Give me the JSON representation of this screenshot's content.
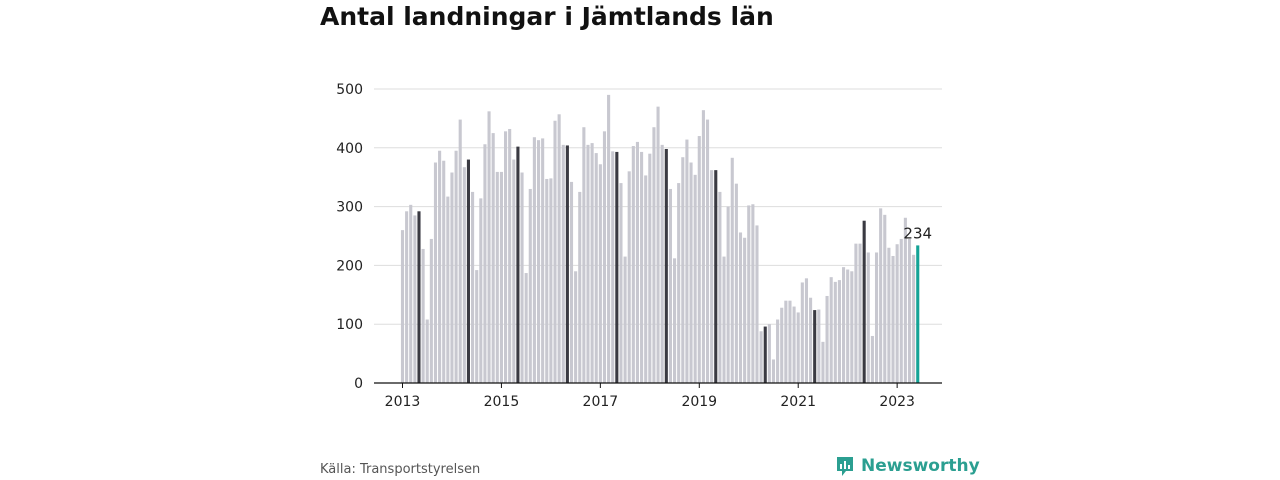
{
  "title": "Antal landningar i Jämtlands län",
  "source": "Källa: Transportstyrelsen",
  "brand": {
    "name": "Newsworthy",
    "icon": "newsworthy-logo-icon",
    "color": "#2b9f91"
  },
  "chart_data": {
    "type": "bar",
    "title": "Antal landningar i Jämtlands län",
    "xlabel": "",
    "ylabel": "",
    "ylim": [
      0,
      500
    ],
    "yticks": [
      0,
      100,
      200,
      300,
      400,
      500
    ],
    "xticks": [
      "2013",
      "2015",
      "2017",
      "2019",
      "2021",
      "2023"
    ],
    "grid": true,
    "colors": {
      "default": "#c8c8d0",
      "highlight": "#3a3a42",
      "latest": "#14a396"
    },
    "annotation": {
      "label": "234"
    },
    "series": [
      {
        "values": [
          260,
          292,
          303,
          285,
          292,
          228,
          108,
          245,
          375,
          395,
          378,
          317,
          358,
          395,
          448,
          367,
          380,
          325,
          192,
          314,
          406,
          462,
          425,
          359,
          359,
          428,
          432,
          380,
          402,
          358,
          187,
          330,
          418,
          413,
          416,
          347,
          348,
          446,
          457,
          405,
          404,
          342,
          190,
          325,
          435,
          405,
          408,
          391,
          372,
          428,
          490,
          394,
          393,
          340,
          215,
          360,
          403,
          410,
          393,
          353,
          390,
          435,
          470,
          405,
          398,
          330,
          212,
          340,
          384,
          414,
          375,
          354,
          420,
          464,
          448,
          362,
          362,
          325,
          215,
          300,
          383,
          339,
          256,
          247,
          302,
          304,
          268,
          88,
          96,
          100,
          40,
          108,
          128,
          140,
          140,
          130,
          120,
          171,
          178,
          145,
          124,
          125,
          70,
          148,
          180,
          172,
          175,
          197,
          193,
          190,
          237,
          237,
          276,
          222,
          80,
          222,
          297,
          286,
          230,
          216,
          236,
          245,
          281,
          245,
          218,
          234
        ],
        "highlight_indices": [
          4,
          16,
          28,
          40,
          52,
          64,
          76,
          88,
          100,
          112
        ],
        "latest_index": 125
      }
    ]
  }
}
